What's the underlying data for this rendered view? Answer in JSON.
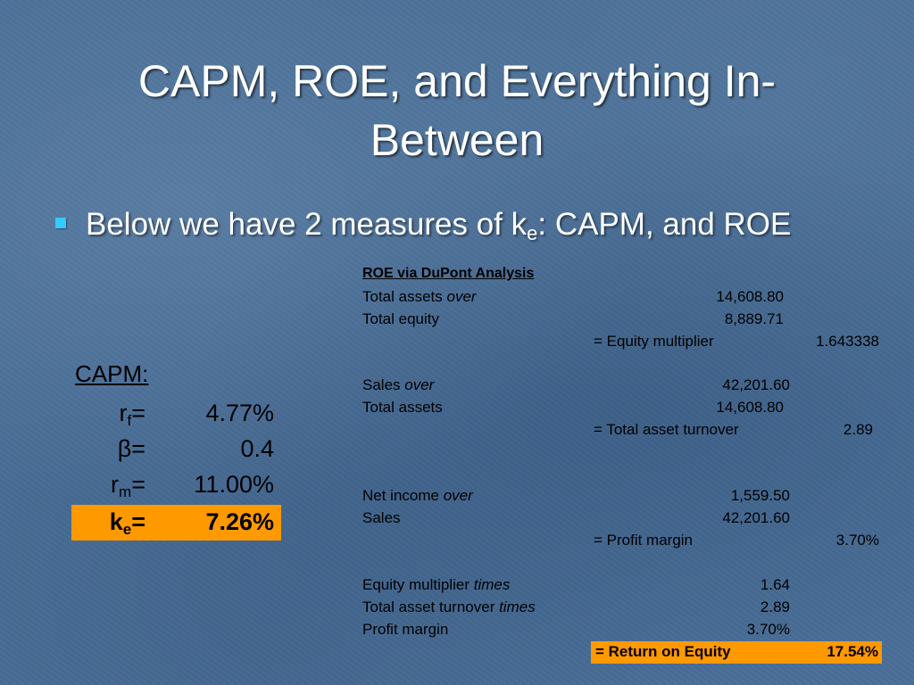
{
  "slide": {
    "title_line1": "CAPM, ROE, and Everything In-",
    "title_line2": "Between",
    "bullet": {
      "prefix": "Below we have 2 measures of k",
      "subscript": "e",
      "suffix": ": CAPM, and ROE"
    }
  },
  "capm": {
    "heading": "CAPM:",
    "rows": [
      {
        "symbol": "r",
        "sub": "f",
        "eq": "=",
        "value": "4.77%"
      },
      {
        "symbol": "β",
        "sub": "",
        "eq": "=",
        "value": "0.4"
      },
      {
        "symbol": "r",
        "sub": "m",
        "eq": "=",
        "value": "11.00%"
      },
      {
        "symbol": "k",
        "sub": "e",
        "eq": "=",
        "value": "7.26%"
      }
    ],
    "highlight_color": "#ff9900"
  },
  "roe": {
    "heading": "ROE via DuPont Analysis",
    "equity_multiplier_block": {
      "line1_label": "Total assets ",
      "line1_italic": "over",
      "line1_value": "14,608.80",
      "line2_label": "Total equity",
      "line2_value": "8,889.71",
      "result_label": "= Equity multiplier",
      "result_value": "1.643338"
    },
    "asset_turnover_block": {
      "line1_label": "Sales ",
      "line1_italic": "over",
      "line1_value": "42,201.60",
      "line2_label": "Total assets",
      "line2_value": "14,608.80",
      "result_label": "= Total asset turnover",
      "result_value": "2.89"
    },
    "profit_margin_block": {
      "line1_label": "Net income ",
      "line1_italic": "over",
      "line1_value": "1,559.50",
      "line2_label": "Sales",
      "line2_value": "42,201.60",
      "result_label": "= Profit margin",
      "result_value": "3.70%"
    },
    "product_block": {
      "line1_label": "Equity multiplier ",
      "line1_italic": "times",
      "line1_value": "1.64",
      "line2_label": "Total asset turnover ",
      "line2_italic": "times",
      "line2_value": "2.89",
      "line3_label": "Profit margin",
      "line3_value": "3.70%",
      "result_label": "= Return on Equity",
      "result_value": "17.54%"
    }
  },
  "colors": {
    "background": "#4a6f97",
    "bullet": "#33ccff",
    "highlight": "#ff9900"
  }
}
